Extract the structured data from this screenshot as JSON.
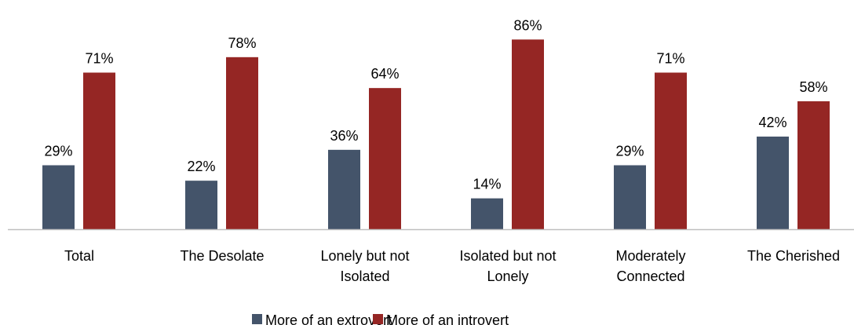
{
  "chart_data": {
    "type": "bar",
    "categories": [
      [
        "Total"
      ],
      [
        "The Desolate"
      ],
      [
        "Lonely but not",
        "Isolated"
      ],
      [
        "Isolated but not",
        "Lonely"
      ],
      [
        "Moderately",
        "Connected"
      ],
      [
        "The Cherished"
      ]
    ],
    "series": [
      {
        "name": "More of an extrovert",
        "values": [
          29,
          22,
          36,
          14,
          29,
          42
        ],
        "labels": [
          "29%",
          "22%",
          "36%",
          "14%",
          "29%",
          "42%"
        ],
        "color": "#44546A"
      },
      {
        "name": "More of an introvert",
        "values": [
          71,
          78,
          64,
          86,
          71,
          58
        ],
        "labels": [
          "71%",
          "78%",
          "64%",
          "86%",
          "71%",
          "58%"
        ],
        "color": "#952624"
      }
    ],
    "value_suffix": "%",
    "ylim": [
      0,
      100
    ],
    "grid": false,
    "legend_position": "bottom",
    "axis_color": "#BFBFBF"
  }
}
